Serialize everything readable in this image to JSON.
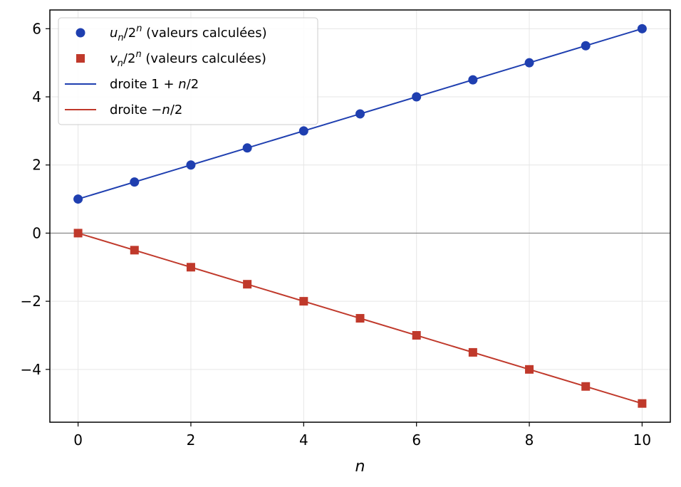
{
  "chart_data": {
    "type": "scatter",
    "xlabel": "n",
    "ylabel": "",
    "xlim": [
      -0.5,
      10.5
    ],
    "ylim": [
      -5.55,
      6.55
    ],
    "xticks": [
      0,
      2,
      4,
      6,
      8,
      10
    ],
    "yticks": [
      -4,
      -2,
      0,
      2,
      4,
      6
    ],
    "ytick_labels": [
      "−4",
      "−2",
      "0",
      "2",
      "4",
      "6"
    ],
    "xtick_labels": [
      "0",
      "2",
      "4",
      "6",
      "8",
      "10"
    ],
    "grid": true,
    "zero_line": true,
    "legend_position": "top-left",
    "series": [
      {
        "name": "u_n/2^n (valeurs calculées)",
        "kind": "points",
        "marker": "circle",
        "color": "#1f3fb0",
        "x": [
          0,
          1,
          2,
          3,
          4,
          5,
          6,
          7,
          8,
          9,
          10
        ],
        "y": [
          1,
          1.5,
          2,
          2.5,
          3,
          3.5,
          4,
          4.5,
          5,
          5.5,
          6
        ]
      },
      {
        "name": "v_n/2^n (valeurs calculées)",
        "kind": "points",
        "marker": "square",
        "color": "#c0392b",
        "x": [
          0,
          1,
          2,
          3,
          4,
          5,
          6,
          7,
          8,
          9,
          10
        ],
        "y": [
          0,
          -0.5,
          -1,
          -1.5,
          -2,
          -2.5,
          -3,
          -3.5,
          -4,
          -4.5,
          -5
        ]
      },
      {
        "name": "droite 1 + n/2",
        "kind": "line",
        "color": "#1f3fb0",
        "x": [
          0,
          10
        ],
        "y": [
          1,
          6
        ]
      },
      {
        "name": "droite −n/2",
        "kind": "line",
        "color": "#c0392b",
        "x": [
          0,
          10
        ],
        "y": [
          0,
          -5
        ]
      }
    ]
  },
  "legend": {
    "items": [
      {
        "prefix_var": "u",
        "sub": "n",
        "mid": "/2",
        "sup": "n",
        "suffix": " (valeurs calculées)",
        "marker": "circle",
        "color": "#1f3fb0"
      },
      {
        "prefix_var": "v",
        "sub": "n",
        "mid": "/2",
        "sup": "n",
        "suffix": " (valeurs calculées)",
        "marker": "square",
        "color": "#c0392b"
      },
      {
        "text": "droite 1 + ",
        "var": "n",
        "after": "/2",
        "marker": "line",
        "color": "#1f3fb0"
      },
      {
        "text": "droite −",
        "var": "n",
        "after": "/2",
        "marker": "line",
        "color": "#c0392b"
      }
    ]
  }
}
